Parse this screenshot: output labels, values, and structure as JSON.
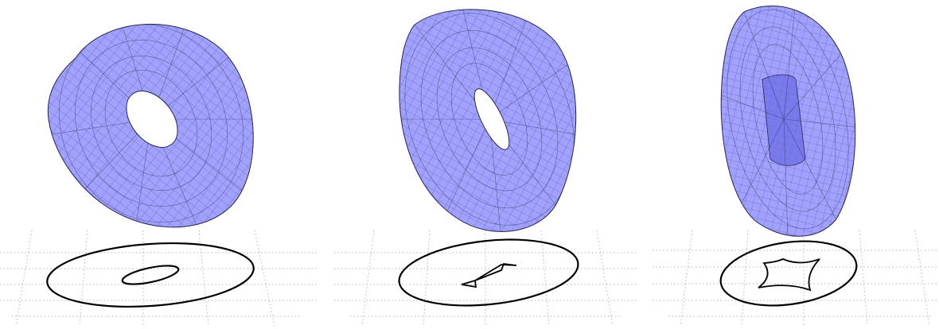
{
  "figure": {
    "colors": {
      "surface_fill": "#8c8cff",
      "surface_edge": "#26264d",
      "mesh_line": "#1a1a3a",
      "inner_shadow": "#6a6ae6",
      "projection_curve": "#000000",
      "floor_grid": "#9a9a9a",
      "background": "#ffffff"
    },
    "panels": [
      {
        "id": "panel-1",
        "surface": "torus",
        "projection_inner_curve": "ellipse"
      },
      {
        "id": "panel-2",
        "surface": "torus",
        "projection_inner_curve": "lens-with-cusps"
      },
      {
        "id": "panel-3",
        "surface": "torus",
        "projection_inner_curve": "astroid-like-four-cusps"
      }
    ]
  }
}
